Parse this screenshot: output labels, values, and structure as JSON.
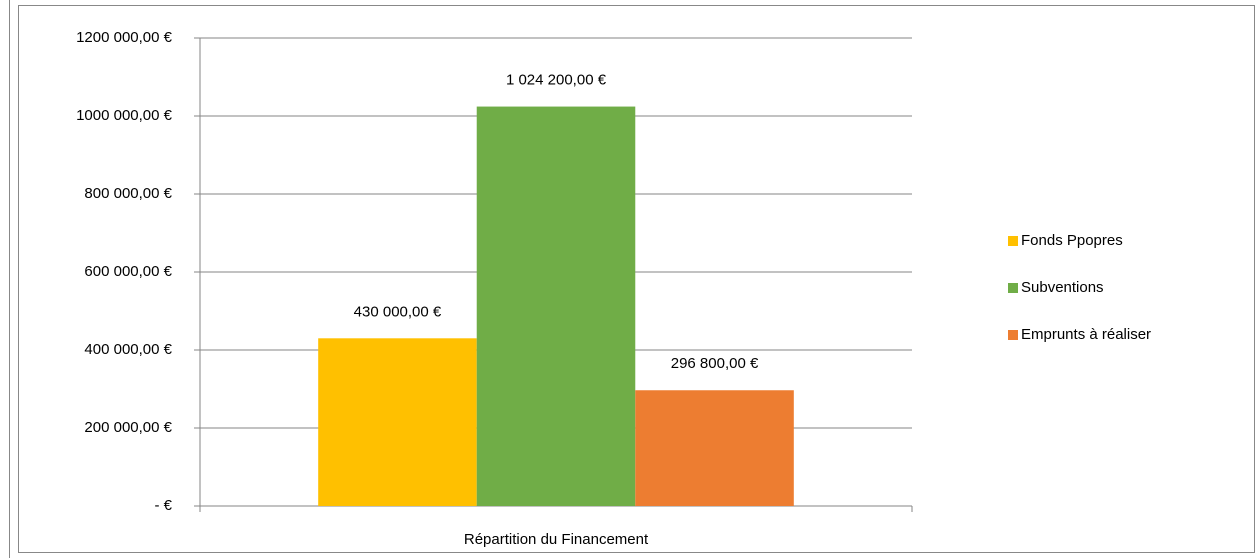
{
  "chart_data": {
    "type": "bar",
    "categories": [
      "Répartition du Financement"
    ],
    "series": [
      {
        "name": "Fonds Ppopres",
        "color": "#ffc000",
        "values": [
          430000
        ],
        "value_labels": [
          "430 000,00 €"
        ]
      },
      {
        "name": "Subventions",
        "color": "#70ad47",
        "values": [
          1024200
        ],
        "value_labels": [
          "1 024 200,00 €"
        ]
      },
      {
        "name": "Emprunts à réaliser",
        "color": "#ed7d31",
        "values": [
          296800
        ],
        "value_labels": [
          "296 800,00 €"
        ]
      }
    ],
    "ylim": [
      0,
      1200000
    ],
    "yticks": [
      {
        "value": 0,
        "label": "-  €"
      },
      {
        "value": 200000,
        "label": "200 000,00 €"
      },
      {
        "value": 400000,
        "label": "400 000,00 €"
      },
      {
        "value": 600000,
        "label": "600 000,00 €"
      },
      {
        "value": 800000,
        "label": "800 000,00 €"
      },
      {
        "value": 1000000,
        "label": "1000 000,00 €"
      },
      {
        "value": 1200000,
        "label": "1200 000,00 €"
      }
    ],
    "grid": true,
    "legend": "right"
  }
}
